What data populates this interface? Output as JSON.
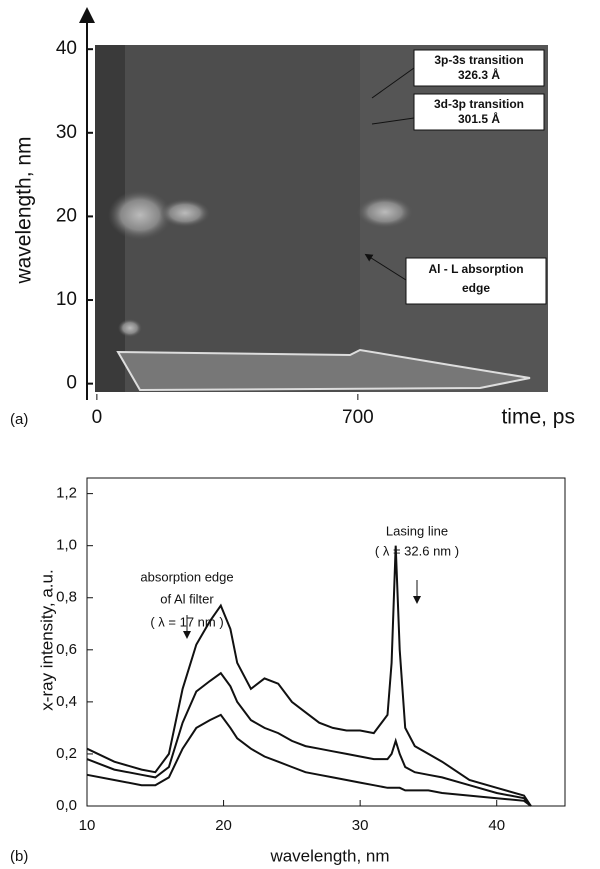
{
  "chart_data": [
    {
      "type": "image",
      "ylabel": "wavelength, nm",
      "xlabel": "time, ps",
      "panel": "(a)",
      "xlim": [
        -5,
        1210
      ],
      "xticks": [
        0,
        700
      ],
      "ylim": [
        -1,
        40.5
      ],
      "yticks": [
        0,
        10,
        20,
        30,
        40
      ],
      "annotations": [
        "3p-3s transition",
        "326.3 Å",
        "3d-3p transition",
        "301.5 Å",
        "Al - L absorption",
        "edge"
      ]
    },
    {
      "type": "line",
      "xlabel": "wavelength, nm",
      "ylabel": "x-ray intensity, a.u.",
      "panel": "(b)",
      "xlim": [
        10,
        45
      ],
      "xticks": [
        10,
        20,
        30,
        40
      ],
      "ylim": [
        0,
        1.26
      ],
      "yticks": [
        {
          "value": 0,
          "label": "0,0"
        },
        {
          "value": 0.2,
          "label": "0,2"
        },
        {
          "value": 0.4,
          "label": "0,4"
        },
        {
          "value": 0.6,
          "label": "0,6"
        },
        {
          "value": 0.8,
          "label": "0,8"
        },
        {
          "value": 1.0,
          "label": "1,0"
        },
        {
          "value": 1.2,
          "label": "1,2"
        }
      ],
      "annotations": [
        "Lasing line",
        "( λ = 32.6 nm )",
        "absorption edge",
        "of Al filter",
        "( λ = 17 nm )"
      ],
      "x": [
        10,
        12,
        14,
        15,
        16,
        17,
        18,
        19,
        19.8,
        20.5,
        21,
        22,
        23,
        24,
        25,
        26,
        27,
        28,
        29,
        30,
        31,
        32,
        32.3,
        32.6,
        32.9,
        33.3,
        34,
        35,
        36,
        38,
        40,
        42,
        42.5
      ],
      "series": [
        {
          "color": "#111111",
          "values": [
            0.22,
            0.17,
            0.14,
            0.13,
            0.2,
            0.45,
            0.62,
            0.71,
            0.77,
            0.68,
            0.55,
            0.45,
            0.49,
            0.47,
            0.4,
            0.36,
            0.32,
            0.3,
            0.29,
            0.29,
            0.28,
            0.35,
            0.55,
            1.0,
            0.6,
            0.3,
            0.23,
            0.2,
            0.17,
            0.1,
            0.07,
            0.04,
            0.0
          ]
        },
        {
          "color": "#111111",
          "values": [
            0.18,
            0.14,
            0.12,
            0.11,
            0.15,
            0.32,
            0.44,
            0.48,
            0.51,
            0.46,
            0.4,
            0.33,
            0.3,
            0.28,
            0.25,
            0.23,
            0.22,
            0.21,
            0.2,
            0.19,
            0.18,
            0.18,
            0.2,
            0.25,
            0.2,
            0.15,
            0.13,
            0.12,
            0.11,
            0.08,
            0.05,
            0.03,
            0.0
          ]
        },
        {
          "color": "#111111",
          "values": [
            0.12,
            0.1,
            0.08,
            0.08,
            0.11,
            0.22,
            0.3,
            0.33,
            0.35,
            0.3,
            0.26,
            0.22,
            0.19,
            0.17,
            0.15,
            0.13,
            0.12,
            0.11,
            0.1,
            0.09,
            0.08,
            0.07,
            0.07,
            0.07,
            0.07,
            0.06,
            0.06,
            0.06,
            0.05,
            0.04,
            0.03,
            0.02,
            0.0
          ]
        }
      ]
    }
  ]
}
